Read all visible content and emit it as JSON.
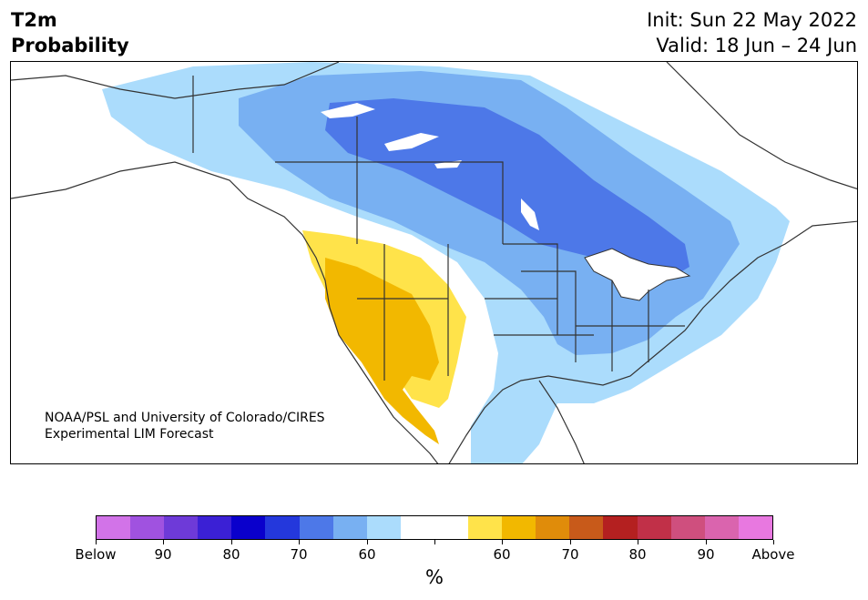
{
  "header": {
    "variable": "T2m",
    "subtitle": "Probability",
    "init": "Init: Sun 22 May 2022",
    "valid": "Valid: 18 Jun – 24 Jun"
  },
  "credit": {
    "line1": "NOAA/PSL and University of Colorado/CIRES",
    "line2": "Experimental LIM Forecast"
  },
  "colorbar": {
    "unit": "%",
    "colors": [
      "#d273e8",
      "#a052e0",
      "#6e3ad8",
      "#3b20d5",
      "#0a00cc",
      "#2438dc",
      "#4d78e8",
      "#78b0f2",
      "#abdcfc",
      "#ffffff",
      "#ffffff",
      "#ffe34a",
      "#f2b800",
      "#e08c0a",
      "#c85a1a",
      "#b42020",
      "#c13048",
      "#cf4f7e",
      "#da64ae",
      "#e878e0"
    ],
    "labels": [
      "Below",
      "90",
      "80",
      "70",
      "60",
      "",
      "60",
      "70",
      "80",
      "90",
      "Above"
    ]
  },
  "legend_meaning": {
    "below_colors": "blue-purple = probability of below-normal temperature",
    "above_colors": "yellow-red-pink = probability of above-normal temperature"
  }
}
